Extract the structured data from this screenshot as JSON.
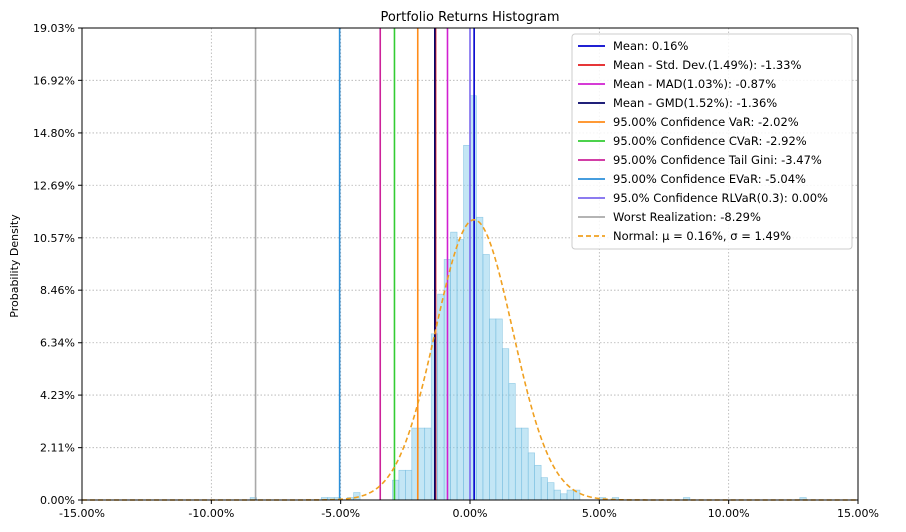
{
  "chart_data": {
    "type": "histogram",
    "title": "Portfolio Returns Histogram",
    "xlabel": "",
    "ylabel": "Probability Density",
    "xlim": [
      -15,
      15
    ],
    "ylim": [
      0,
      19.03
    ],
    "x_ticks": [
      "-15.00%",
      "-10.00%",
      "-5.00%",
      "0.00%",
      "5.00%",
      "10.00%",
      "15.00%"
    ],
    "x_tick_values": [
      -15,
      -10,
      -5,
      0,
      5,
      10,
      15
    ],
    "y_ticks": [
      "0.00%",
      "2.11%",
      "4.23%",
      "6.34%",
      "8.46%",
      "10.57%",
      "12.69%",
      "14.80%",
      "16.92%",
      "19.03%"
    ],
    "y_tick_values": [
      0,
      2.11,
      4.23,
      6.34,
      8.46,
      10.57,
      12.69,
      14.8,
      16.92,
      19.03
    ],
    "grid": true,
    "legend_position": "top-right",
    "histogram": {
      "bin_width": 0.25,
      "color": "#87ceeb",
      "bins": [
        {
          "x0": -8.5,
          "value": 0.1
        },
        {
          "x0": -5.75,
          "value": 0.1
        },
        {
          "x0": -5.5,
          "value": 0.1
        },
        {
          "x0": -5.25,
          "value": 0.1
        },
        {
          "x0": -4.75,
          "value": 0.1
        },
        {
          "x0": -4.5,
          "value": 0.3
        },
        {
          "x0": -3.0,
          "value": 0.8
        },
        {
          "x0": -2.75,
          "value": 1.2
        },
        {
          "x0": -2.5,
          "value": 1.2
        },
        {
          "x0": -2.25,
          "value": 2.9
        },
        {
          "x0": -2.0,
          "value": 2.9
        },
        {
          "x0": -1.75,
          "value": 2.9
        },
        {
          "x0": -1.5,
          "value": 6.7
        },
        {
          "x0": -1.25,
          "value": 8.3
        },
        {
          "x0": -1.0,
          "value": 9.7
        },
        {
          "x0": -0.75,
          "value": 10.8
        },
        {
          "x0": -0.5,
          "value": 10.5
        },
        {
          "x0": -0.25,
          "value": 14.3
        },
        {
          "x0": 0.0,
          "value": 16.3
        },
        {
          "x0": 0.25,
          "value": 11.4
        },
        {
          "x0": 0.5,
          "value": 9.9
        },
        {
          "x0": 0.75,
          "value": 7.3
        },
        {
          "x0": 1.0,
          "value": 7.3
        },
        {
          "x0": 1.25,
          "value": 6.1
        },
        {
          "x0": 1.5,
          "value": 4.7
        },
        {
          "x0": 1.75,
          "value": 2.9
        },
        {
          "x0": 2.0,
          "value": 2.9
        },
        {
          "x0": 2.25,
          "value": 1.9
        },
        {
          "x0": 2.5,
          "value": 1.4
        },
        {
          "x0": 2.75,
          "value": 0.9
        },
        {
          "x0": 3.0,
          "value": 0.7
        },
        {
          "x0": 3.25,
          "value": 0.4
        },
        {
          "x0": 3.5,
          "value": 0.25
        },
        {
          "x0": 3.75,
          "value": 0.4
        },
        {
          "x0": 4.0,
          "value": 0.4
        },
        {
          "x0": 5.0,
          "value": 0.1
        },
        {
          "x0": 5.5,
          "value": 0.1
        },
        {
          "x0": 8.25,
          "value": 0.1
        },
        {
          "x0": 12.75,
          "value": 0.1
        }
      ]
    },
    "vertical_lines": [
      {
        "label": "Mean: 0.16%",
        "x": 0.16,
        "color": "#0000cd",
        "style": "solid"
      },
      {
        "label": "Mean - Std. Dev.(1.49%): -1.33%",
        "x": -1.33,
        "color": "#e31a1c",
        "style": "solid"
      },
      {
        "label": "Mean - MAD(1.03%): -0.87%",
        "x": -0.87,
        "color": "#d11fd1",
        "style": "solid"
      },
      {
        "label": "Mean - GMD(1.52%): -1.36%",
        "x": -1.36,
        "color": "#000066",
        "style": "solid"
      },
      {
        "label": "95.00% Confidence VaR: -2.02%",
        "x": -2.02,
        "color": "#ff8c1a",
        "style": "solid"
      },
      {
        "label": "95.00% Confidence CVaR: -2.92%",
        "x": -2.92,
        "color": "#33cc33",
        "style": "solid"
      },
      {
        "label": "95.00% Confidence Tail Gini: -3.47%",
        "x": -3.47,
        "color": "#cc2299",
        "style": "solid"
      },
      {
        "label": "95.00% Confidence EVaR: -5.04%",
        "x": -5.04,
        "color": "#2b8fd9",
        "style": "solid"
      },
      {
        "label": "95.0% Confidence RLVaR(0.3): 0.00%",
        "x": 0.0,
        "color": "#7b68ee",
        "style": "solid"
      },
      {
        "label": "Worst Realization: -8.29%",
        "x": -8.29,
        "color": "#a9a9a9",
        "style": "solid"
      }
    ],
    "normal_curve": {
      "label": "Normal: $\\mu=0.16\\%$, $\\sigma=1.49\\%$",
      "label_display": "Normal: μ = 0.16%, σ = 1.49%",
      "mu": 0.16,
      "sigma": 1.49,
      "peak": 11.3,
      "color": "#f0a020",
      "style": "dashed"
    }
  }
}
